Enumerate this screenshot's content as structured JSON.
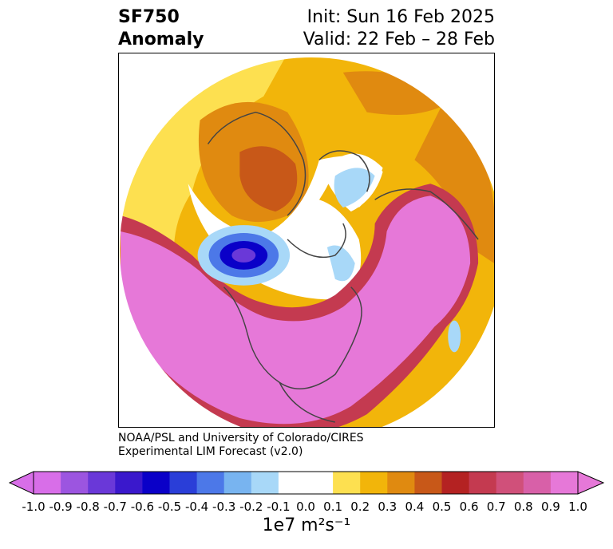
{
  "header": {
    "variable": "SF750",
    "kind": "Anomaly",
    "init": "Init: Sun 16 Feb 2025",
    "valid": "Valid: 22 Feb – 28 Feb"
  },
  "credit": {
    "line1": "NOAA/PSL and University of Colorado/CIRES",
    "line2": "Experimental LIM Forecast (v2.0)"
  },
  "colorbar": {
    "levels": [
      "-1.0",
      "-0.9",
      "-0.8",
      "-0.7",
      "-0.6",
      "-0.5",
      "-0.4",
      "-0.3",
      "-0.2",
      "-0.1",
      "0.0",
      "0.1",
      "0.2",
      "0.3",
      "0.4",
      "0.5",
      "0.6",
      "0.7",
      "0.8",
      "0.9",
      "1.0"
    ],
    "colors": [
      "#d86ee8",
      "#9c55e0",
      "#6a38d8",
      "#3a18cc",
      "#0a00c8",
      "#2a3ed8",
      "#4c78e8",
      "#78b4f0",
      "#a8d8f8",
      "#ffffff",
      "#ffffff",
      "#fde050",
      "#f2b50a",
      "#e08a10",
      "#c85818",
      "#b42222",
      "#c43a50",
      "#d0507a",
      "#d860a8",
      "#e678d8"
    ],
    "under_color": "#d86ee8",
    "over_color": "#e678d8",
    "unit_label": "1e7 m²s⁻¹"
  },
  "palette": {
    "magenta": "#e678d8",
    "pink": "#d860a8",
    "rose": "#c43a50",
    "red": "#b42222",
    "rust": "#c85818",
    "orange": "#e08a10",
    "gold": "#f2b50a",
    "yellow": "#fde050",
    "lightblue": "#a8d8f8",
    "midblue": "#4c78e8",
    "darkblue": "#0a00c8",
    "purple": "#6a38d8",
    "coast": "#444444"
  }
}
